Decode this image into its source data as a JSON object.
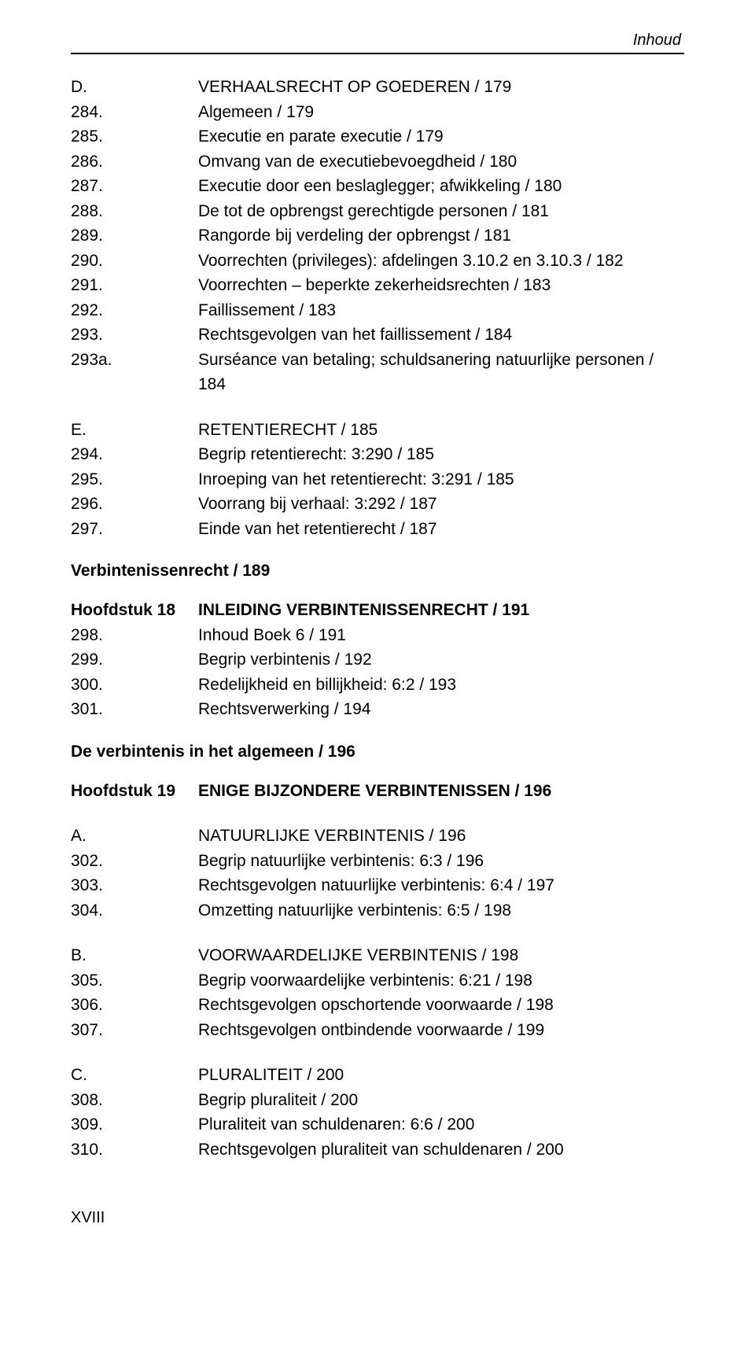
{
  "header": {
    "right": "Inhoud"
  },
  "blocks": [
    {
      "type": "rows",
      "rows": [
        {
          "num": "D.",
          "text": "VERHAALSRECHT OP GOEDEREN / 179"
        },
        {
          "num": "284.",
          "text": "Algemeen / 179"
        },
        {
          "num": "285.",
          "text": "Executie en parate executie / 179"
        },
        {
          "num": "286.",
          "text": "Omvang van de executiebevoegdheid / 180"
        },
        {
          "num": "287.",
          "text": "Executie door een beslaglegger; afwikkeling / 180"
        },
        {
          "num": "288.",
          "text": "De tot de opbrengst gerechtigde personen / 181"
        },
        {
          "num": "289.",
          "text": "Rangorde bij verdeling der opbrengst / 181"
        },
        {
          "num": "290.",
          "text": "Voorrechten (privileges): afdelingen 3.10.2 en 3.10.3 / 182"
        },
        {
          "num": "291.",
          "text": "Voorrechten – beperkte zekerheidsrechten / 183"
        },
        {
          "num": "292.",
          "text": "Faillissement / 183"
        },
        {
          "num": "293.",
          "text": "Rechtsgevolgen van het faillissement / 184"
        },
        {
          "num": "293a.",
          "text": "Surséance van betaling; schuldsanering natuurlijke personen / 184"
        }
      ]
    },
    {
      "type": "rows",
      "rows": [
        {
          "num": "E.",
          "text": "RETENTIERECHT / 185"
        },
        {
          "num": "294.",
          "text": "Begrip retentierecht: 3:290 / 185"
        },
        {
          "num": "295.",
          "text": "Inroeping van het retentierecht: 3:291 / 185"
        },
        {
          "num": "296.",
          "text": "Voorrang bij verhaal: 3:292 / 187"
        },
        {
          "num": "297.",
          "text": "Einde van het retentierecht / 187"
        }
      ]
    },
    {
      "type": "section",
      "text": "Verbintenissenrecht / 189"
    },
    {
      "type": "rows",
      "rows": [
        {
          "num": "Hoofdstuk 18",
          "num_bold": true,
          "text": "INLEIDING VERBINTENISSENRECHT / 191",
          "text_bold": true
        },
        {
          "num": "298.",
          "text": "Inhoud Boek 6 / 191"
        },
        {
          "num": "299.",
          "text": "Begrip verbintenis / 192"
        },
        {
          "num": "300.",
          "text": "Redelijkheid en billijkheid: 6:2 / 193"
        },
        {
          "num": "301.",
          "text": "Rechtsverwerking / 194"
        }
      ]
    },
    {
      "type": "section",
      "text": "De verbintenis in het algemeen / 196"
    },
    {
      "type": "rows",
      "rows": [
        {
          "num": "Hoofdstuk 19",
          "num_bold": true,
          "text": "ENIGE BIJZONDERE VERBINTENISSEN / 196",
          "text_bold": true
        }
      ]
    },
    {
      "type": "rows",
      "rows": [
        {
          "num": "A.",
          "text": "NATUURLIJKE VERBINTENIS / 196"
        },
        {
          "num": "302.",
          "text": "Begrip natuurlijke verbintenis: 6:3 / 196"
        },
        {
          "num": "303.",
          "text": "Rechtsgevolgen natuurlijke verbintenis: 6:4 / 197"
        },
        {
          "num": "304.",
          "text": "Omzetting natuurlijke verbintenis: 6:5 / 198"
        }
      ]
    },
    {
      "type": "rows",
      "rows": [
        {
          "num": "B.",
          "text": "VOORWAARDELIJKE VERBINTENIS / 198"
        },
        {
          "num": "305.",
          "text": "Begrip voorwaardelijke verbintenis: 6:21 / 198"
        },
        {
          "num": "306.",
          "text": "Rechtsgevolgen opschortende voorwaarde / 198"
        },
        {
          "num": "307.",
          "text": "Rechtsgevolgen ontbindende voorwaarde / 199"
        }
      ]
    },
    {
      "type": "rows",
      "rows": [
        {
          "num": "C.",
          "text": "PLURALITEIT / 200"
        },
        {
          "num": "308.",
          "text": "Begrip pluraliteit / 200"
        },
        {
          "num": "309.",
          "text": "Pluraliteit van schuldenaren: 6:6 / 200"
        },
        {
          "num": "310.",
          "text": "Rechtsgevolgen pluraliteit van schuldenaren / 200"
        }
      ]
    }
  ],
  "page_number": "XVIII"
}
